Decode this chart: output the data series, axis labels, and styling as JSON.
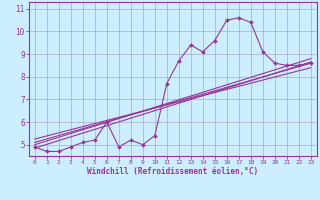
{
  "xlabel": "Windchill (Refroidissement éolien,°C)",
  "background_color": "#cceeff",
  "grid_color": "#aaaacc",
  "line_color": "#993399",
  "xlim": [
    -0.5,
    23.5
  ],
  "ylim": [
    4.5,
    11.3
  ],
  "xticks": [
    0,
    1,
    2,
    3,
    4,
    5,
    6,
    7,
    8,
    9,
    10,
    11,
    12,
    13,
    14,
    15,
    16,
    17,
    18,
    19,
    20,
    21,
    22,
    23
  ],
  "yticks": [
    5,
    6,
    7,
    8,
    9,
    10,
    11
  ],
  "data_line": {
    "x": [
      0,
      1,
      2,
      3,
      4,
      5,
      6,
      7,
      8,
      9,
      10,
      11,
      12,
      13,
      14,
      15,
      16,
      17,
      18,
      19,
      20,
      21,
      22,
      23
    ],
    "y": [
      4.9,
      4.7,
      4.7,
      4.9,
      5.1,
      5.2,
      6.0,
      4.9,
      5.2,
      5.0,
      5.4,
      7.7,
      8.7,
      9.4,
      9.1,
      9.6,
      10.5,
      10.6,
      10.4,
      9.1,
      8.6,
      8.5,
      8.5,
      8.6
    ]
  },
  "line1": {
    "x": [
      0,
      23
    ],
    "y": [
      4.85,
      8.65
    ]
  },
  "line2": {
    "x": [
      0,
      23
    ],
    "y": [
      5.0,
      8.8
    ]
  },
  "line3": {
    "x": [
      0,
      23
    ],
    "y": [
      5.1,
      8.6
    ]
  },
  "line4": {
    "x": [
      0,
      23
    ],
    "y": [
      5.25,
      8.4
    ]
  }
}
